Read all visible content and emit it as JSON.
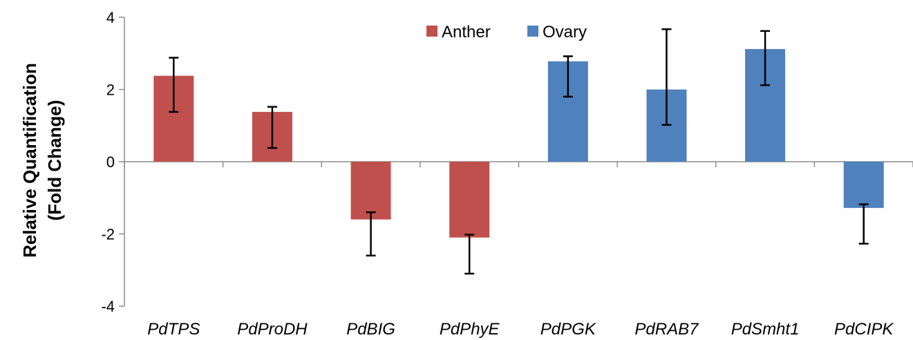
{
  "chart_data": {
    "type": "bar",
    "title": "",
    "xlabel": "",
    "ylabel": [
      "Relative Quantification",
      "(Fold Change)"
    ],
    "ylim": [
      -4,
      4
    ],
    "yticks": [
      "4",
      "2",
      "0",
      "-2",
      "-4"
    ],
    "legend_position": "top-center",
    "categories": [
      "PdTPS",
      "PdProDH",
      "PdBIG",
      "PdPhyE",
      "PdPGK",
      "PdRAB7",
      "PdSmht1",
      "PdCIPK"
    ],
    "series": [
      {
        "name": "Anther",
        "color": "#C0504D",
        "values": [
          2.38,
          1.38,
          -1.6,
          -2.1,
          null,
          null,
          null,
          null
        ],
        "error_low": [
          1.38,
          0.38,
          -2.6,
          -3.1,
          null,
          null,
          null,
          null
        ],
        "error_high": [
          2.88,
          1.52,
          -1.4,
          -2.02,
          null,
          null,
          null,
          null
        ]
      },
      {
        "name": "Ovary",
        "color": "#4F81BD",
        "values": [
          null,
          null,
          null,
          null,
          2.78,
          2.0,
          3.12,
          -1.28
        ],
        "error_low": [
          null,
          null,
          null,
          null,
          1.8,
          1.02,
          2.12,
          -2.27
        ],
        "error_high": [
          null,
          null,
          null,
          null,
          2.92,
          3.67,
          3.62,
          -1.18
        ]
      }
    ]
  }
}
